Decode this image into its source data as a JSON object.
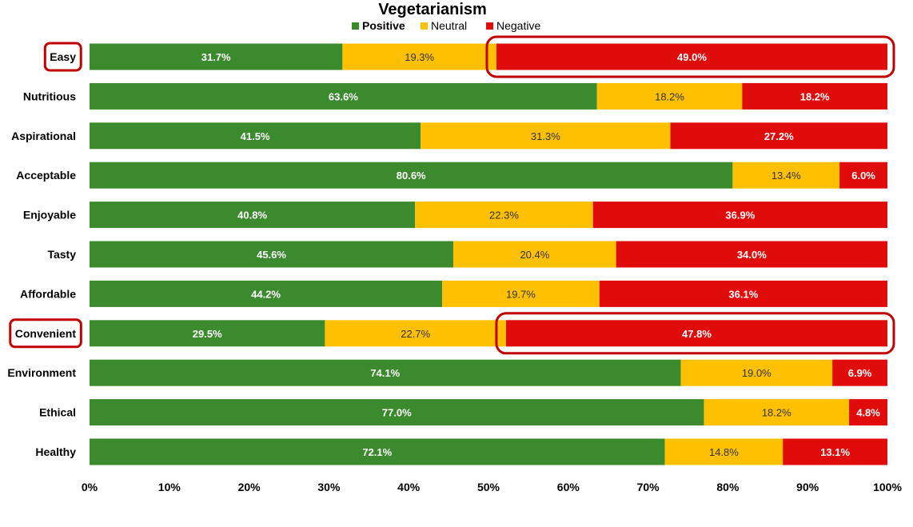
{
  "chart_data": {
    "type": "bar",
    "orientation": "horizontal",
    "stacked": "percent",
    "title": "Vegetarianism",
    "xlabel": "",
    "ylabel": "",
    "xlim": [
      0,
      100
    ],
    "x_ticks": [
      "0%",
      "10%",
      "20%",
      "30%",
      "40%",
      "50%",
      "60%",
      "70%",
      "80%",
      "90%",
      "100%"
    ],
    "legend_position": "top-center",
    "grid": false,
    "categories": [
      "Easy",
      "Nutritious",
      "Aspirational",
      "Acceptable",
      "Enjoyable",
      "Tasty",
      "Affordable",
      "Convenient",
      "Environment",
      "Ethical",
      "Healthy"
    ],
    "series": [
      {
        "name": "Positive",
        "color": "#3c8a2e",
        "values": [
          31.7,
          63.6,
          41.5,
          80.6,
          40.8,
          45.6,
          44.2,
          29.5,
          74.1,
          77.0,
          72.1
        ],
        "labels": [
          "31.7%",
          "63.6%",
          "41.5%",
          "80.6%",
          "40.8%",
          "45.6%",
          "44.2%",
          "29.5%",
          "74.1%",
          "77.0%",
          "72.1%"
        ]
      },
      {
        "name": "Neutral",
        "color": "#ffc000",
        "values": [
          19.3,
          18.2,
          31.3,
          13.4,
          22.3,
          20.4,
          19.7,
          22.7,
          19.0,
          18.2,
          14.8
        ],
        "labels": [
          "19.3%",
          "18.2%",
          "31.3%",
          "13.4%",
          "22.3%",
          "20.4%",
          "19.7%",
          "22.7%",
          "19.0%",
          "18.2%",
          "14.8%"
        ]
      },
      {
        "name": "Negative",
        "color": "#e00b0b",
        "values": [
          49.0,
          18.2,
          27.2,
          6.0,
          36.9,
          34.0,
          36.1,
          47.8,
          6.9,
          4.8,
          13.1
        ],
        "labels": [
          "49.0%",
          "18.2%",
          "27.2%",
          "6.0%",
          "36.9%",
          "34.0%",
          "36.1%",
          "47.8%",
          "6.9%",
          "4.8%",
          "13.1%"
        ]
      }
    ],
    "highlights": [
      "Easy",
      "Convenient"
    ],
    "highlight_color": "#c00000"
  }
}
